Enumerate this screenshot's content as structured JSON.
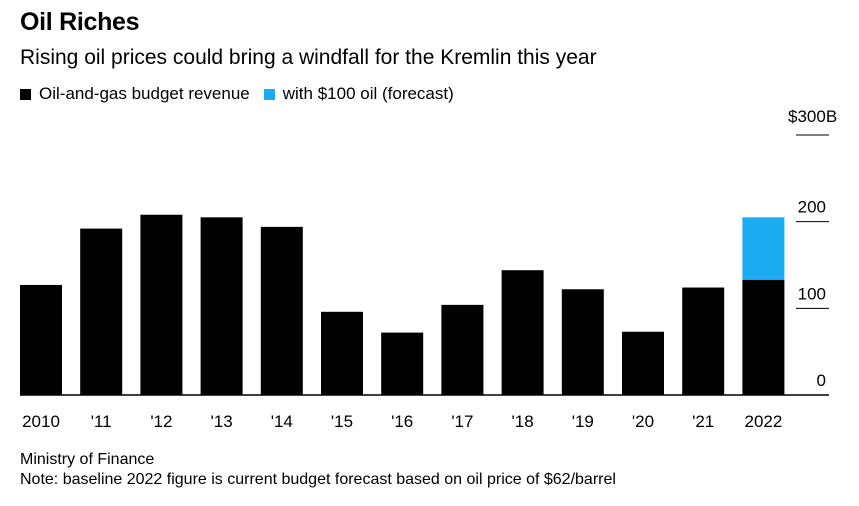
{
  "header": {
    "title": "Oil Riches",
    "subtitle": "Rising oil prices could bring a windfall for the Kremlin this year"
  },
  "legend": [
    {
      "label": "Oil-and-gas budget revenue",
      "color": "#000000"
    },
    {
      "label": "with $100 oil (forecast)",
      "color": "#1aabf0"
    }
  ],
  "footer": {
    "source": "Ministry of Finance",
    "note": "Note: baseline 2022 figure is current budget forecast based on oil price of $62/barrel"
  },
  "chart_data": {
    "type": "bar",
    "stacked": true,
    "categories": [
      "2010",
      "'11",
      "'12",
      "'13",
      "'14",
      "'15",
      "'16",
      "'17",
      "'18",
      "'19",
      "'20",
      "'21",
      "2022"
    ],
    "series": [
      {
        "name": "Oil-and-gas budget revenue",
        "color": "#000000",
        "values": [
          127,
          192,
          208,
          205,
          194,
          96,
          72,
          104,
          144,
          122,
          73,
          124,
          133
        ]
      },
      {
        "name": "with $100 oil (forecast)",
        "color": "#1aabf0",
        "values": [
          0,
          0,
          0,
          0,
          0,
          0,
          0,
          0,
          0,
          0,
          0,
          0,
          72
        ]
      }
    ],
    "ylim": [
      0,
      300
    ],
    "yticks": [
      0,
      100,
      200
    ],
    "ymax_label": "$300B",
    "ylabel": "",
    "xlabel": "",
    "grid": false,
    "legend_position": "top-left"
  }
}
